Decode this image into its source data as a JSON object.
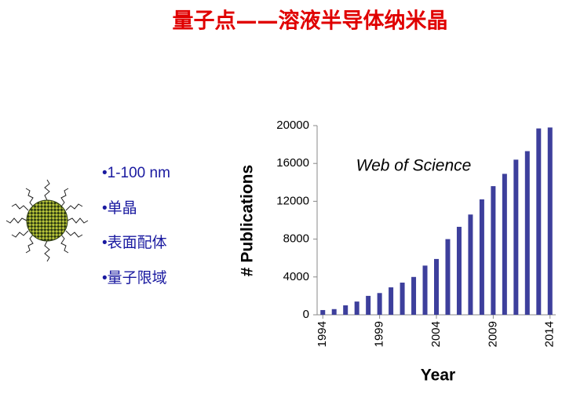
{
  "slide_title": "量子点——溶液半导体纳米晶",
  "bullets": [
    "•1-100 nm",
    "•单晶",
    "•表面配体",
    "•量子限域"
  ],
  "chart_data": {
    "type": "bar",
    "annotation": "Web of Science",
    "x_label": "Year",
    "y_label": "# Publications",
    "x": [
      1994,
      1995,
      1996,
      1997,
      1998,
      1999,
      2000,
      2001,
      2002,
      2003,
      2004,
      2005,
      2006,
      2007,
      2008,
      2009,
      2010,
      2011,
      2012,
      2013,
      2014
    ],
    "values": [
      500,
      600,
      1000,
      1400,
      2000,
      2300,
      2900,
      3400,
      4000,
      5200,
      5900,
      8000,
      9300,
      10600,
      12200,
      13600,
      14900,
      16400,
      17300,
      19700,
      19800
    ],
    "color": "#3d3f9c",
    "xlim": [
      1993.5,
      2014.5
    ],
    "xticks": [
      1994,
      1999,
      2004,
      2009,
      2014
    ],
    "ylim": [
      0,
      20000
    ],
    "yticks": [
      0,
      4000,
      8000,
      12000,
      16000,
      20000
    ]
  }
}
